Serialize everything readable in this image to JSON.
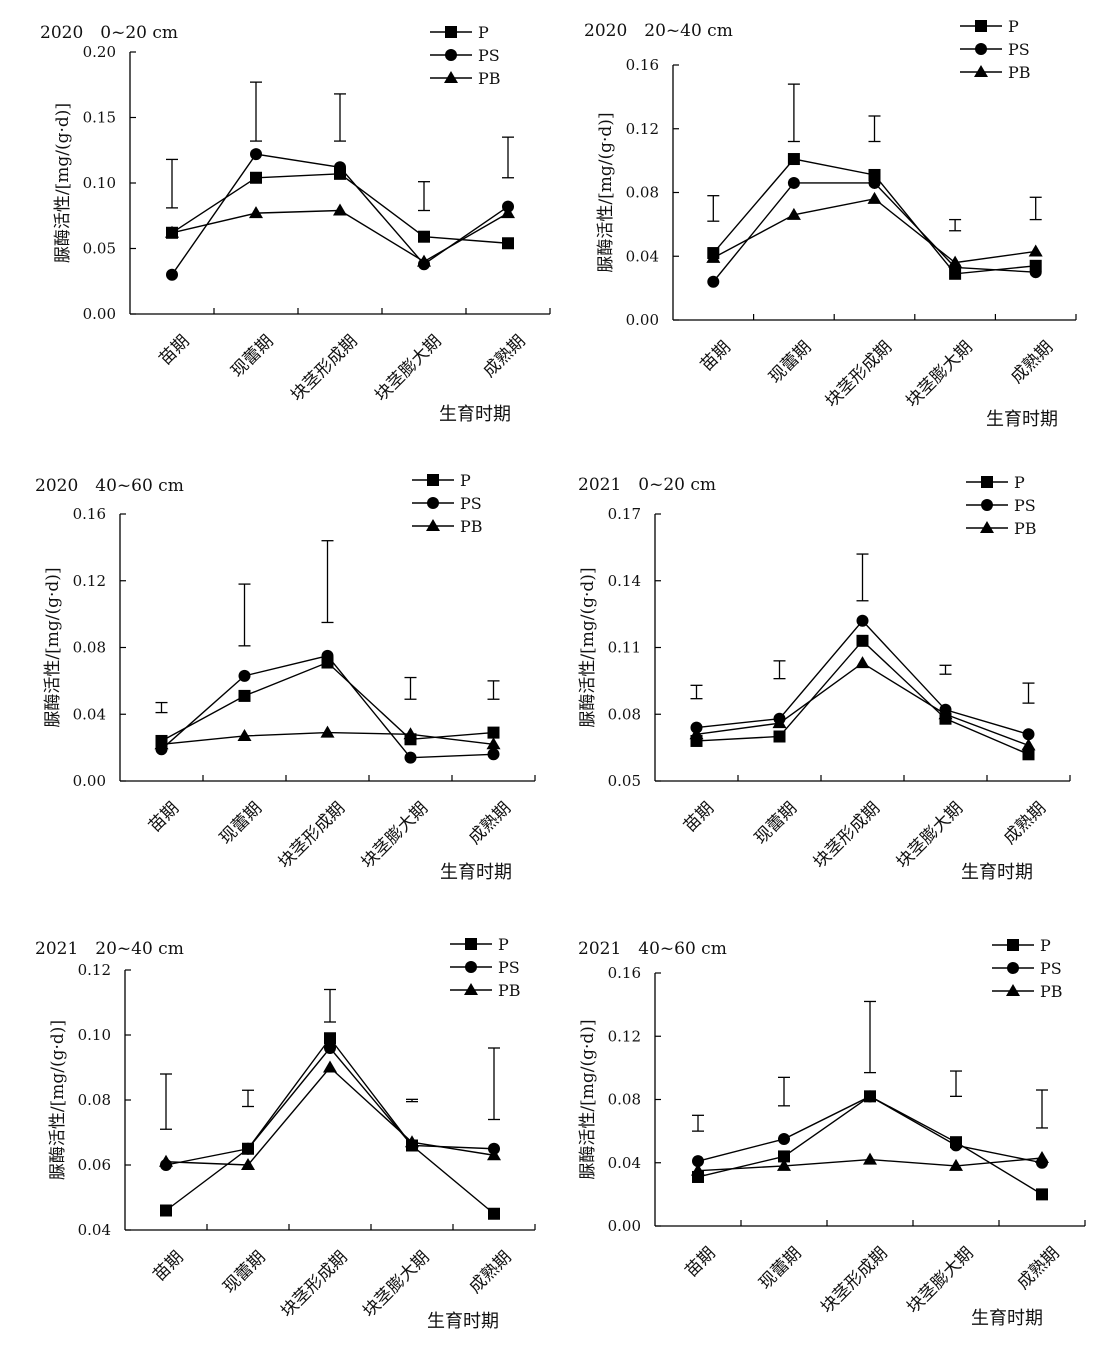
{
  "chart_data": [
    {
      "type": "line",
      "title": "2020　0~20 cm",
      "ylabel": "脲酶活性/[mg/(g·d)]",
      "xlabel": "生育时期",
      "categories": [
        "苗期",
        "现蕾期",
        "块茎形成期",
        "块茎膨大期",
        "成熟期"
      ],
      "ylim": [
        0,
        0.2
      ],
      "yticks": [
        "0.00",
        "0.05",
        "0.10",
        "0.15",
        "0.20"
      ],
      "legend_position": "top-right",
      "series": [
        {
          "name": "P",
          "marker": "square",
          "values": [
            0.062,
            0.104,
            0.107,
            0.059,
            0.054
          ]
        },
        {
          "name": "PS",
          "marker": "circle",
          "values": [
            0.03,
            0.122,
            0.112,
            0.038,
            0.082
          ]
        },
        {
          "name": "PB",
          "marker": "triangle",
          "values": [
            0.062,
            0.077,
            0.079,
            0.04,
            0.077
          ]
        }
      ],
      "error_bars": [
        [
          0.081,
          0.118
        ],
        [
          0.132,
          0.177
        ],
        [
          0.132,
          0.168
        ],
        [
          0.079,
          0.101
        ],
        [
          0.104,
          0.135
        ]
      ]
    },
    {
      "type": "line",
      "title": "2020　20~40 cm",
      "ylabel": "脲酶活性/[mg/(g·d)]",
      "xlabel": "生育时期",
      "categories": [
        "苗期",
        "现蕾期",
        "块茎形成期",
        "块茎膨大期",
        "成熟期"
      ],
      "ylim": [
        0,
        0.16
      ],
      "yticks": [
        "0.00",
        "0.04",
        "0.08",
        "0.12",
        "0.16"
      ],
      "legend_position": "top-right",
      "series": [
        {
          "name": "P",
          "marker": "square",
          "values": [
            0.042,
            0.101,
            0.091,
            0.029,
            0.034
          ]
        },
        {
          "name": "PS",
          "marker": "circle",
          "values": [
            0.024,
            0.086,
            0.086,
            0.033,
            0.03
          ]
        },
        {
          "name": "PB",
          "marker": "triangle",
          "values": [
            0.039,
            0.066,
            0.076,
            0.036,
            0.043
          ]
        }
      ],
      "error_bars": [
        [
          0.062,
          0.078
        ],
        [
          0.112,
          0.148
        ],
        [
          0.112,
          0.128
        ],
        [
          0.056,
          0.063
        ],
        [
          0.063,
          0.077
        ]
      ]
    },
    {
      "type": "line",
      "title": "2020　40~60 cm",
      "ylabel": "脲酶活性/[mg/(g·d)]",
      "xlabel": "生育时期",
      "categories": [
        "苗期",
        "现蕾期",
        "块茎形成期",
        "块茎膨大期",
        "成熟期"
      ],
      "ylim": [
        0,
        0.16
      ],
      "yticks": [
        "0.00",
        "0.04",
        "0.08",
        "0.12",
        "0.16"
      ],
      "legend_position": "top-right",
      "series": [
        {
          "name": "P",
          "marker": "square",
          "values": [
            0.024,
            0.051,
            0.071,
            0.025,
            0.029
          ]
        },
        {
          "name": "PS",
          "marker": "circle",
          "values": [
            0.019,
            0.063,
            0.075,
            0.014,
            0.016
          ]
        },
        {
          "name": "PB",
          "marker": "triangle",
          "values": [
            0.022,
            0.027,
            0.029,
            0.028,
            0.022
          ]
        }
      ],
      "error_bars": [
        [
          0.041,
          0.047
        ],
        [
          0.081,
          0.118
        ],
        [
          0.095,
          0.144
        ],
        [
          0.049,
          0.062
        ],
        [
          0.049,
          0.06
        ]
      ]
    },
    {
      "type": "line",
      "title": "2021　0~20 cm",
      "ylabel": "脲酶活性/[mg/(g·d)]",
      "xlabel": "生育时期",
      "categories": [
        "苗期",
        "现蕾期",
        "块茎形成期",
        "块茎膨大期",
        "成熟期"
      ],
      "ylim": [
        0.05,
        0.17
      ],
      "yticks": [
        "0.05",
        "0.08",
        "0.11",
        "0.14",
        "0.17"
      ],
      "legend_position": "top-right",
      "series": [
        {
          "name": "P",
          "marker": "square",
          "values": [
            0.068,
            0.07,
            0.113,
            0.078,
            0.062
          ]
        },
        {
          "name": "PS",
          "marker": "circle",
          "values": [
            0.074,
            0.078,
            0.122,
            0.082,
            0.071
          ]
        },
        {
          "name": "PB",
          "marker": "triangle",
          "values": [
            0.071,
            0.076,
            0.103,
            0.08,
            0.066
          ]
        }
      ],
      "error_bars": [
        [
          0.087,
          0.093
        ],
        [
          0.096,
          0.104
        ],
        [
          0.131,
          0.152
        ],
        [
          0.098,
          0.102
        ],
        [
          0.085,
          0.094
        ]
      ]
    },
    {
      "type": "line",
      "title": "2021　20~40 cm",
      "ylabel": "脲酶活性/[mg/(g·d)]",
      "xlabel": "生育时期",
      "categories": [
        "苗期",
        "现蕾期",
        "块茎形成期",
        "块茎膨大期",
        "成熟期"
      ],
      "ylim": [
        0.04,
        0.12
      ],
      "yticks": [
        "0.04",
        "0.06",
        "0.08",
        "0.10",
        "0.12"
      ],
      "legend_position": "top-right",
      "series": [
        {
          "name": "P",
          "marker": "square",
          "values": [
            0.046,
            0.065,
            0.099,
            0.066,
            0.045
          ]
        },
        {
          "name": "PS",
          "marker": "circle",
          "values": [
            0.06,
            0.065,
            0.096,
            0.066,
            0.065
          ]
        },
        {
          "name": "PB",
          "marker": "triangle",
          "values": [
            0.061,
            0.06,
            0.09,
            0.067,
            0.063
          ]
        }
      ],
      "error_bars": [
        [
          0.071,
          0.088
        ],
        [
          0.078,
          0.083
        ],
        [
          0.104,
          0.114
        ],
        [
          0.0795,
          0.0802
        ],
        [
          0.074,
          0.096
        ]
      ]
    },
    {
      "type": "line",
      "title": "2021　40~60 cm",
      "ylabel": "脲酶活性/[mg/(g·d)]",
      "xlabel": "生育时期",
      "categories": [
        "苗期",
        "现蕾期",
        "块茎形成期",
        "块茎膨大期",
        "成熟期"
      ],
      "ylim": [
        0,
        0.16
      ],
      "yticks": [
        "0.00",
        "0.04",
        "0.08",
        "0.12",
        "0.16"
      ],
      "legend_position": "top-right",
      "series": [
        {
          "name": "P",
          "marker": "square",
          "values": [
            0.031,
            0.044,
            0.082,
            0.053,
            0.02
          ]
        },
        {
          "name": "PS",
          "marker": "circle",
          "values": [
            0.041,
            0.055,
            0.082,
            0.051,
            0.04
          ]
        },
        {
          "name": "PB",
          "marker": "triangle",
          "values": [
            0.035,
            0.038,
            0.042,
            0.038,
            0.043
          ]
        }
      ],
      "error_bars": [
        [
          0.06,
          0.07
        ],
        [
          0.076,
          0.094
        ],
        [
          0.097,
          0.142
        ],
        [
          0.082,
          0.098
        ],
        [
          0.062,
          0.086
        ]
      ]
    }
  ]
}
